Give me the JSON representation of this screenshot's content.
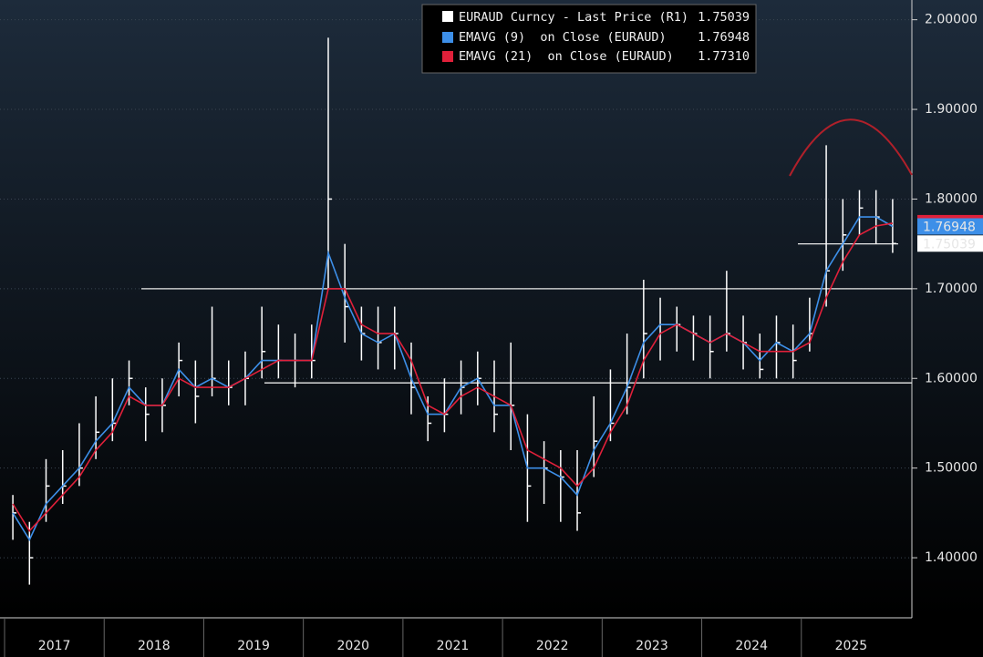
{
  "chart_data": {
    "type": "hilo",
    "categories": [
      "2017",
      null,
      null,
      null,
      null,
      null,
      "2018",
      null,
      null,
      null,
      null,
      null,
      "2019",
      null,
      null,
      null,
      null,
      null,
      "2020",
      null,
      null,
      null,
      null,
      null,
      "2021",
      null,
      null,
      null,
      null,
      null,
      "2022",
      null,
      null,
      null,
      null,
      null,
      "2023",
      null,
      null,
      null,
      null,
      null,
      "2024",
      null,
      null,
      null,
      null,
      null,
      "2025",
      null,
      null,
      null,
      null,
      null
    ],
    "series": [
      {
        "name": "EURAUD Curncy - Last Price (R1)",
        "color": "#ffffff",
        "values": [
          1.45,
          1.4,
          1.48,
          1.48,
          1.5,
          1.54,
          1.55,
          1.6,
          1.56,
          1.57,
          1.62,
          1.58,
          1.6,
          1.59,
          1.6,
          1.63,
          1.62,
          1.62,
          1.62,
          1.8,
          1.68,
          1.65,
          1.64,
          1.65,
          1.59,
          1.55,
          1.56,
          1.59,
          1.6,
          1.56,
          1.57,
          1.48,
          1.5,
          1.49,
          1.45,
          1.53,
          1.55,
          1.59,
          1.65,
          1.66,
          1.66,
          1.65,
          1.63,
          1.65,
          1.64,
          1.61,
          1.64,
          1.62,
          1.65,
          1.72,
          1.76,
          1.79,
          1.78,
          1.75039
        ],
        "high": [
          1.47,
          1.44,
          1.51,
          1.52,
          1.55,
          1.58,
          1.6,
          1.62,
          1.59,
          1.6,
          1.64,
          1.62,
          1.68,
          1.62,
          1.63,
          1.68,
          1.66,
          1.65,
          1.66,
          1.98,
          1.75,
          1.68,
          1.68,
          1.68,
          1.64,
          1.58,
          1.6,
          1.62,
          1.63,
          1.62,
          1.64,
          1.56,
          1.53,
          1.52,
          1.52,
          1.58,
          1.61,
          1.65,
          1.71,
          1.69,
          1.68,
          1.67,
          1.67,
          1.72,
          1.67,
          1.65,
          1.67,
          1.66,
          1.69,
          1.86,
          1.8,
          1.81,
          1.81,
          1.8
        ],
        "low": [
          1.42,
          1.37,
          1.44,
          1.46,
          1.48,
          1.51,
          1.53,
          1.57,
          1.53,
          1.54,
          1.58,
          1.55,
          1.58,
          1.57,
          1.57,
          1.6,
          1.6,
          1.59,
          1.6,
          1.7,
          1.64,
          1.62,
          1.61,
          1.61,
          1.56,
          1.53,
          1.54,
          1.56,
          1.57,
          1.54,
          1.52,
          1.44,
          1.46,
          1.44,
          1.43,
          1.49,
          1.53,
          1.56,
          1.6,
          1.62,
          1.63,
          1.62,
          1.6,
          1.63,
          1.61,
          1.6,
          1.6,
          1.6,
          1.63,
          1.68,
          1.72,
          1.76,
          1.75,
          1.74
        ]
      },
      {
        "name": "EMAVG (9)  on Close (EURAUD)",
        "color": "#3d8fe8",
        "values": [
          1.45,
          1.42,
          1.46,
          1.48,
          1.5,
          1.53,
          1.55,
          1.59,
          1.57,
          1.57,
          1.61,
          1.59,
          1.6,
          1.59,
          1.6,
          1.62,
          1.62,
          1.62,
          1.62,
          1.74,
          1.69,
          1.65,
          1.64,
          1.65,
          1.6,
          1.56,
          1.56,
          1.59,
          1.6,
          1.57,
          1.57,
          1.5,
          1.5,
          1.49,
          1.47,
          1.52,
          1.55,
          1.59,
          1.64,
          1.66,
          1.66,
          1.65,
          1.64,
          1.65,
          1.64,
          1.62,
          1.64,
          1.63,
          1.65,
          1.72,
          1.75,
          1.78,
          1.78,
          1.76948
        ]
      },
      {
        "name": "EMAVG (21)  on Close (EURAUD)",
        "color": "#e0203a",
        "values": [
          1.46,
          1.43,
          1.45,
          1.47,
          1.49,
          1.52,
          1.54,
          1.58,
          1.57,
          1.57,
          1.6,
          1.59,
          1.59,
          1.59,
          1.6,
          1.61,
          1.62,
          1.62,
          1.62,
          1.7,
          1.7,
          1.66,
          1.65,
          1.65,
          1.62,
          1.57,
          1.56,
          1.58,
          1.59,
          1.58,
          1.57,
          1.52,
          1.51,
          1.5,
          1.48,
          1.5,
          1.54,
          1.57,
          1.62,
          1.65,
          1.66,
          1.65,
          1.64,
          1.65,
          1.64,
          1.63,
          1.63,
          1.63,
          1.64,
          1.69,
          1.73,
          1.76,
          1.77,
          1.7731
        ]
      }
    ],
    "legend_values": [
      "1.75039",
      "1.76948",
      "1.77310"
    ],
    "reference_lines": [
      1.7,
      1.595,
      1.75
    ],
    "ylim": [
      1.333,
      2.022
    ],
    "yticks": [
      {
        "value": 1.4,
        "label": "1.40000"
      },
      {
        "value": 1.5,
        "label": "1.50000"
      },
      {
        "value": 1.6,
        "label": "1.60000"
      },
      {
        "value": 1.7,
        "label": "1.70000"
      },
      {
        "value": 1.8,
        "label": "1.80000"
      },
      {
        "value": 1.9,
        "label": "1.90000"
      },
      {
        "value": 2.0,
        "label": "2.00000"
      }
    ],
    "grid": true
  }
}
